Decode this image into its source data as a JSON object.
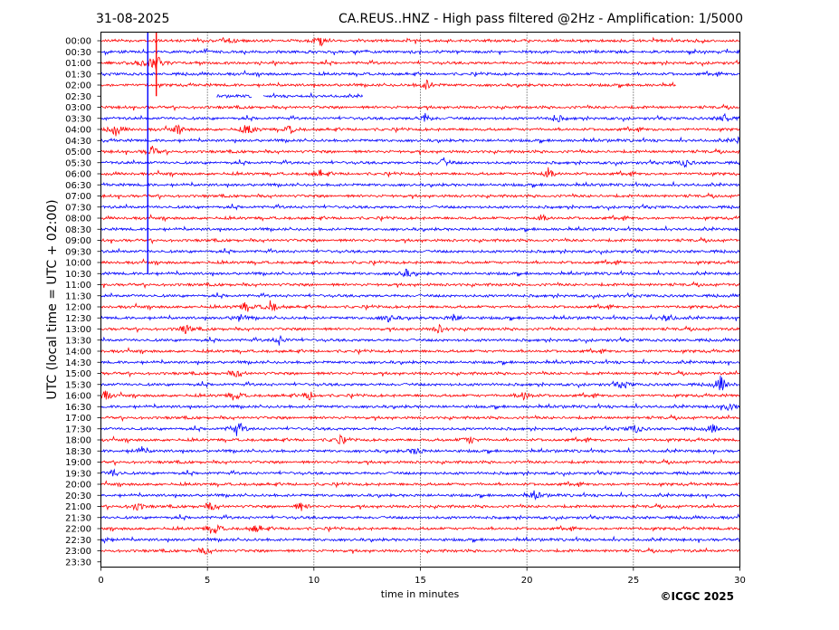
{
  "header": {
    "date": "31-08-2025",
    "title": "CA.REUS..HNZ - High pass filtered @2Hz - Amplification: 1/5000"
  },
  "footer": {
    "copyright": "©ICGC 2025"
  },
  "chart_data": {
    "type": "line",
    "title": "CA.REUS..HNZ - High pass filtered @2Hz - Amplification: 1/5000",
    "xlabel": "time in minutes",
    "ylabel": "UTC (local time = UTC + 02:00)",
    "xlim": [
      0,
      30
    ],
    "x_ticks": [
      "0",
      "5",
      "10",
      "15",
      "20",
      "25",
      "30"
    ],
    "grid": "vertical dotted lines at every 5 minutes",
    "colors": {
      "odd_rows": "#ff0000",
      "even_rows": "#0000ff"
    },
    "rows": [
      {
        "label": "00:00",
        "color": "red"
      },
      {
        "label": "00:30",
        "color": "blue"
      },
      {
        "label": "01:00",
        "color": "red"
      },
      {
        "label": "01:30",
        "color": "blue"
      },
      {
        "label": "02:00",
        "color": "red",
        "end_minute": 27
      },
      {
        "label": "02:30",
        "color": "blue",
        "end_minute": 12.3,
        "gaps": [
          [
            0,
            5.4
          ],
          [
            7.1,
            7.6
          ]
        ]
      },
      {
        "label": "03:00",
        "color": "red"
      },
      {
        "label": "03:30",
        "color": "blue"
      },
      {
        "label": "04:00",
        "color": "red"
      },
      {
        "label": "04:30",
        "color": "blue"
      },
      {
        "label": "05:00",
        "color": "red"
      },
      {
        "label": "05:30",
        "color": "blue"
      },
      {
        "label": "06:00",
        "color": "red"
      },
      {
        "label": "06:30",
        "color": "blue"
      },
      {
        "label": "07:00",
        "color": "red"
      },
      {
        "label": "07:30",
        "color": "blue"
      },
      {
        "label": "08:00",
        "color": "red"
      },
      {
        "label": "08:30",
        "color": "blue"
      },
      {
        "label": "09:00",
        "color": "red"
      },
      {
        "label": "09:30",
        "color": "blue"
      },
      {
        "label": "10:00",
        "color": "red"
      },
      {
        "label": "10:30",
        "color": "blue"
      },
      {
        "label": "11:00",
        "color": "red"
      },
      {
        "label": "11:30",
        "color": "blue"
      },
      {
        "label": "12:00",
        "color": "red"
      },
      {
        "label": "12:30",
        "color": "blue"
      },
      {
        "label": "13:00",
        "color": "red"
      },
      {
        "label": "13:30",
        "color": "blue"
      },
      {
        "label": "14:00",
        "color": "red"
      },
      {
        "label": "14:30",
        "color": "blue"
      },
      {
        "label": "15:00",
        "color": "red"
      },
      {
        "label": "15:30",
        "color": "blue"
      },
      {
        "label": "16:00",
        "color": "red"
      },
      {
        "label": "16:30",
        "color": "blue"
      },
      {
        "label": "17:00",
        "color": "red"
      },
      {
        "label": "17:30",
        "color": "blue"
      },
      {
        "label": "18:00",
        "color": "red"
      },
      {
        "label": "18:30",
        "color": "blue"
      },
      {
        "label": "19:00",
        "color": "red"
      },
      {
        "label": "19:30",
        "color": "blue"
      },
      {
        "label": "20:00",
        "color": "red"
      },
      {
        "label": "20:30",
        "color": "blue"
      },
      {
        "label": "21:00",
        "color": "red"
      },
      {
        "label": "21:30",
        "color": "blue"
      },
      {
        "label": "22:00",
        "color": "red"
      },
      {
        "label": "22:30",
        "color": "blue"
      },
      {
        "label": "23:00",
        "color": "red"
      },
      {
        "label": "23:30",
        "color": "blue",
        "end_minute": 0
      }
    ],
    "events": [
      {
        "row": "00:00",
        "minute": 10.3,
        "amplitude": 0.6
      },
      {
        "row": "00:00",
        "minute": 6.1,
        "amplitude": 0.3
      },
      {
        "row": "01:00",
        "minute": 2.6,
        "amplitude": 1.0
      },
      {
        "row": "01:00",
        "minute": 1.9,
        "amplitude": 0.5
      },
      {
        "row": "02:00",
        "minute": 15.3,
        "amplitude": 0.6
      },
      {
        "row": "03:30",
        "minute": 15.2,
        "amplitude": 0.6
      },
      {
        "row": "03:30",
        "minute": 21.4,
        "amplitude": 0.5
      },
      {
        "row": "03:30",
        "minute": 29.3,
        "amplitude": 0.6
      },
      {
        "row": "04:00",
        "minute": 0.7,
        "amplitude": 0.7
      },
      {
        "row": "04:00",
        "minute": 3.6,
        "amplitude": 0.5
      },
      {
        "row": "04:00",
        "minute": 6.9,
        "amplitude": 0.8
      },
      {
        "row": "04:00",
        "minute": 8.9,
        "amplitude": 0.5
      },
      {
        "row": "04:30",
        "minute": 30,
        "amplitude": 0.5
      },
      {
        "row": "05:00",
        "minute": 2.4,
        "amplitude": 0.6
      },
      {
        "row": "05:30",
        "minute": 16.1,
        "amplitude": 0.5
      },
      {
        "row": "05:30",
        "minute": 27.4,
        "amplitude": 0.5
      },
      {
        "row": "06:00",
        "minute": 21.0,
        "amplitude": 0.7
      },
      {
        "row": "06:00",
        "minute": 10.3,
        "amplitude": 0.4
      },
      {
        "row": "08:00",
        "minute": 20.7,
        "amplitude": 0.4
      },
      {
        "row": "10:30",
        "minute": 14.3,
        "amplitude": 0.5
      },
      {
        "row": "12:00",
        "minute": 8.0,
        "amplitude": 0.9
      },
      {
        "row": "12:00",
        "minute": 6.8,
        "amplitude": 0.6
      },
      {
        "row": "12:30",
        "minute": 6.5,
        "amplitude": 0.5
      },
      {
        "row": "12:30",
        "minute": 13.5,
        "amplitude": 0.5
      },
      {
        "row": "12:30",
        "minute": 16.6,
        "amplitude": 0.5
      },
      {
        "row": "12:30",
        "minute": 26.6,
        "amplitude": 0.5
      },
      {
        "row": "13:00",
        "minute": 4.0,
        "amplitude": 0.6
      },
      {
        "row": "13:00",
        "minute": 15.9,
        "amplitude": 0.5
      },
      {
        "row": "13:30",
        "minute": 8.4,
        "amplitude": 0.6
      },
      {
        "row": "15:00",
        "minute": 6.4,
        "amplitude": 0.5
      },
      {
        "row": "15:30",
        "minute": 29.1,
        "amplitude": 1.0
      },
      {
        "row": "15:30",
        "minute": 24.5,
        "amplitude": 0.5
      },
      {
        "row": "16:00",
        "minute": 0.2,
        "amplitude": 0.6
      },
      {
        "row": "16:00",
        "minute": 6.3,
        "amplitude": 0.6
      },
      {
        "row": "16:00",
        "minute": 19.9,
        "amplitude": 0.6
      },
      {
        "row": "16:00",
        "minute": 9.8,
        "amplitude": 0.5
      },
      {
        "row": "16:30",
        "minute": 29.5,
        "amplitude": 0.5
      },
      {
        "row": "17:30",
        "minute": 6.4,
        "amplitude": 1.0
      },
      {
        "row": "17:30",
        "minute": 25.1,
        "amplitude": 0.6
      },
      {
        "row": "17:30",
        "minute": 28.7,
        "amplitude": 0.5
      },
      {
        "row": "18:00",
        "minute": 17.3,
        "amplitude": 0.5
      },
      {
        "row": "18:00",
        "minute": 11.2,
        "amplitude": 0.5
      },
      {
        "row": "18:30",
        "minute": 1.9,
        "amplitude": 0.5
      },
      {
        "row": "18:30",
        "minute": 14.8,
        "amplitude": 0.5
      },
      {
        "row": "19:30",
        "minute": 0.6,
        "amplitude": 0.5
      },
      {
        "row": "20:30",
        "minute": 20.4,
        "amplitude": 0.5
      },
      {
        "row": "21:00",
        "minute": 1.7,
        "amplitude": 0.6
      },
      {
        "row": "21:00",
        "minute": 5.2,
        "amplitude": 0.5
      },
      {
        "row": "21:00",
        "minute": 9.4,
        "amplitude": 0.5
      },
      {
        "row": "22:00",
        "minute": 5.3,
        "amplitude": 0.8
      },
      {
        "row": "22:00",
        "minute": 7.3,
        "amplitude": 0.5
      },
      {
        "row": "22:30",
        "minute": 0.1,
        "amplitude": 0.5
      },
      {
        "row": "23:00",
        "minute": 4.9,
        "amplitude": 0.4
      }
    ],
    "glitches": [
      {
        "minute": 2.2,
        "from_row": "00:00",
        "to_row": "10:30",
        "color": "blue"
      },
      {
        "minute": 2.6,
        "from_row": "00:00",
        "to_row": "02:30",
        "color": "red"
      }
    ]
  }
}
